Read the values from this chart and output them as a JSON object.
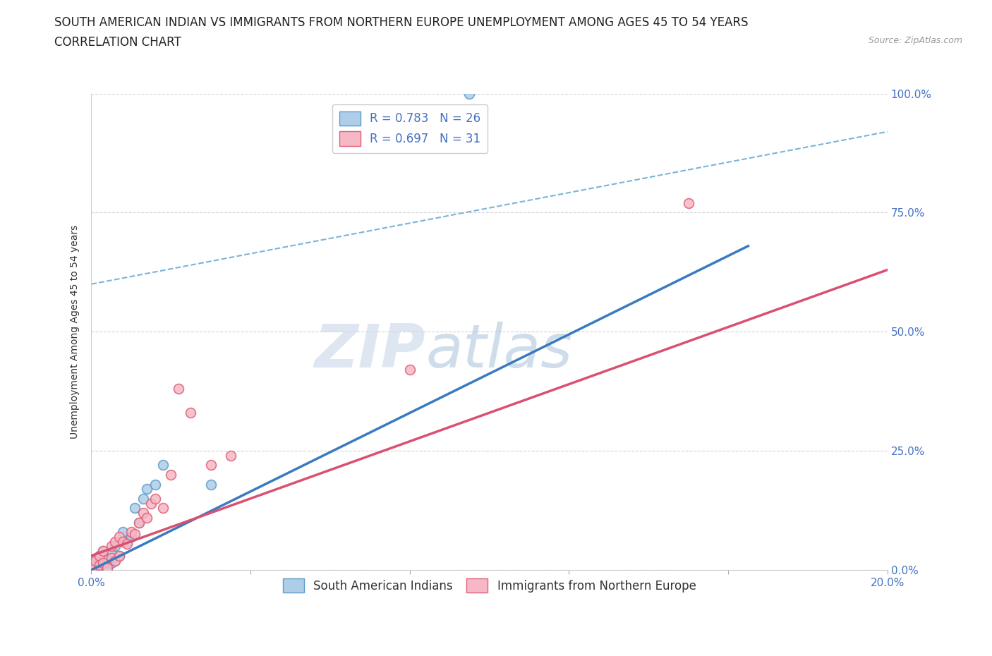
{
  "title_line1": "SOUTH AMERICAN INDIAN VS IMMIGRANTS FROM NORTHERN EUROPE UNEMPLOYMENT AMONG AGES 45 TO 54 YEARS",
  "title_line2": "CORRELATION CHART",
  "source": "Source: ZipAtlas.com",
  "ylabel": "Unemployment Among Ages 45 to 54 years",
  "xlim": [
    0.0,
    0.2
  ],
  "ylim": [
    0.0,
    1.0
  ],
  "xticks": [
    0.0,
    0.04,
    0.08,
    0.12,
    0.16,
    0.2
  ],
  "yticks": [
    0.0,
    0.25,
    0.5,
    0.75,
    1.0
  ],
  "xticklabels_show": [
    "0.0%",
    "20.0%"
  ],
  "yticklabels": [
    "0.0%",
    "25.0%",
    "50.0%",
    "75.0%",
    "100.0%"
  ],
  "blue_fill": "#aecde8",
  "pink_fill": "#f5b8c4",
  "blue_edge": "#5b9ec9",
  "pink_edge": "#e0607a",
  "blue_line_color": "#3a7abf",
  "pink_line_color": "#d95070",
  "dashed_line_color": "#7ab4d8",
  "legend_label1": "South American Indians",
  "legend_label2": "Immigrants from Northern Europe",
  "watermark_zip": "ZIP",
  "watermark_atlas": "atlas",
  "blue_scatter_x": [
    0.0,
    0.0,
    0.001,
    0.001,
    0.002,
    0.002,
    0.003,
    0.003,
    0.004,
    0.004,
    0.005,
    0.005,
    0.006,
    0.006,
    0.007,
    0.008,
    0.009,
    0.01,
    0.011,
    0.012,
    0.013,
    0.014,
    0.016,
    0.018,
    0.03,
    0.095
  ],
  "blue_scatter_y": [
    0.0,
    0.01,
    0.005,
    0.02,
    0.015,
    0.03,
    0.01,
    0.04,
    0.005,
    0.025,
    0.015,
    0.035,
    0.02,
    0.05,
    0.03,
    0.08,
    0.06,
    0.07,
    0.13,
    0.1,
    0.15,
    0.17,
    0.18,
    0.22,
    0.18,
    1.0
  ],
  "pink_scatter_x": [
    0.0,
    0.0,
    0.001,
    0.002,
    0.002,
    0.003,
    0.003,
    0.004,
    0.005,
    0.005,
    0.006,
    0.006,
    0.007,
    0.007,
    0.008,
    0.009,
    0.01,
    0.011,
    0.012,
    0.013,
    0.014,
    0.015,
    0.016,
    0.018,
    0.02,
    0.022,
    0.025,
    0.03,
    0.035,
    0.08,
    0.15
  ],
  "pink_scatter_y": [
    0.0,
    0.01,
    0.02,
    0.01,
    0.03,
    0.015,
    0.04,
    0.005,
    0.025,
    0.05,
    0.02,
    0.06,
    0.03,
    0.07,
    0.06,
    0.055,
    0.08,
    0.075,
    0.1,
    0.12,
    0.11,
    0.14,
    0.15,
    0.13,
    0.2,
    0.38,
    0.33,
    0.22,
    0.24,
    0.42,
    0.77
  ],
  "blue_line_x": [
    0.0,
    0.165
  ],
  "blue_line_y": [
    0.0,
    0.68
  ],
  "pink_line_x": [
    0.0,
    0.2
  ],
  "pink_line_y": [
    0.03,
    0.63
  ],
  "dashed_line_x": [
    0.0,
    0.2
  ],
  "dashed_line_y": [
    0.6,
    0.92
  ],
  "background_color": "#ffffff",
  "grid_color": "#c8c8c8",
  "title_fontsize": 12,
  "axis_label_fontsize": 10,
  "tick_fontsize": 11,
  "legend_fontsize": 12,
  "scatter_size": 100,
  "right_ytick_color": "#4472c4",
  "xtick_color": "#4472c4"
}
